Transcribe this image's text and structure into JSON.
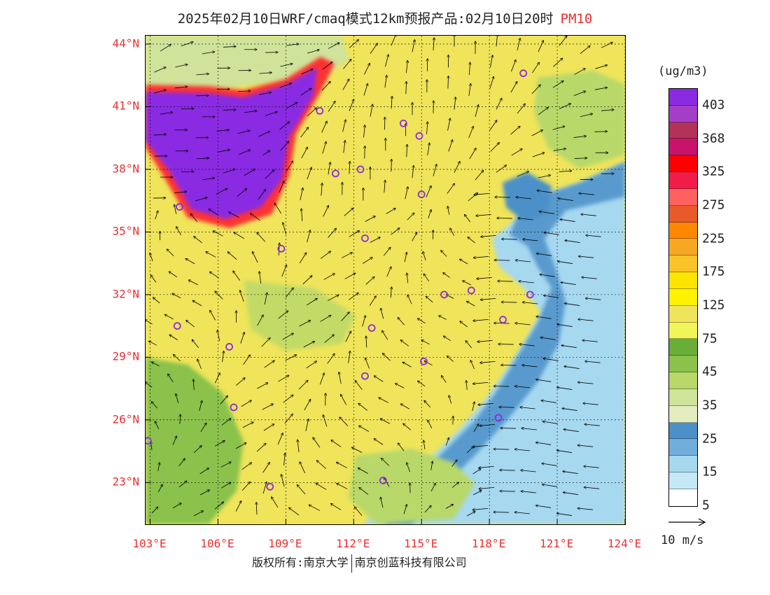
{
  "title": {
    "main": "2025年02月10日WRF/cmaq模式12km预报产品:02月10日20时",
    "species": "PM10"
  },
  "map": {
    "lat_labels": [
      "44°N",
      "41°N",
      "38°N",
      "35°N",
      "32°N",
      "29°N",
      "26°N",
      "23°N"
    ],
    "lon_labels": [
      "103°E",
      "106°E",
      "109°E",
      "112°E",
      "115°E",
      "118°E",
      "121°E",
      "124°E"
    ],
    "lat_range": [
      21.0,
      44.4
    ],
    "lon_range": [
      102.8,
      124.0
    ],
    "region": "East and Central China",
    "colors": {
      "background_pollution": "#efe45a",
      "severe_plume": "#8a2be2",
      "sea": "#a6d8f0"
    }
  },
  "colorbar": {
    "unit": "(ug/m3)",
    "labels": [
      "403",
      "368",
      "325",
      "275",
      "225",
      "175",
      "125",
      "75",
      "45",
      "35",
      "25",
      "15",
      "5"
    ],
    "colors_top_to_bottom": [
      "#8a2be2",
      "#a43dc8",
      "#b33257",
      "#c8136b",
      "#ff0000",
      "#f21c48",
      "#ff6060",
      "#e95a2a",
      "#ff8800",
      "#f7a823",
      "#fbc32b",
      "#fde500",
      "#fff200",
      "#efe45a",
      "#f2f55a",
      "#6aae3a",
      "#8ac24c",
      "#b8d86a",
      "#cfe39a",
      "#e4ecc0",
      "#4b90c8",
      "#72aedc",
      "#a6d8f0",
      "#c5e8f7",
      "#ffffff"
    ]
  },
  "wind_scale": {
    "label": "10 m/s"
  },
  "copyright": {
    "owner1": "版权所有:南京大学",
    "owner2": "南京创蓝科技有限公司"
  }
}
